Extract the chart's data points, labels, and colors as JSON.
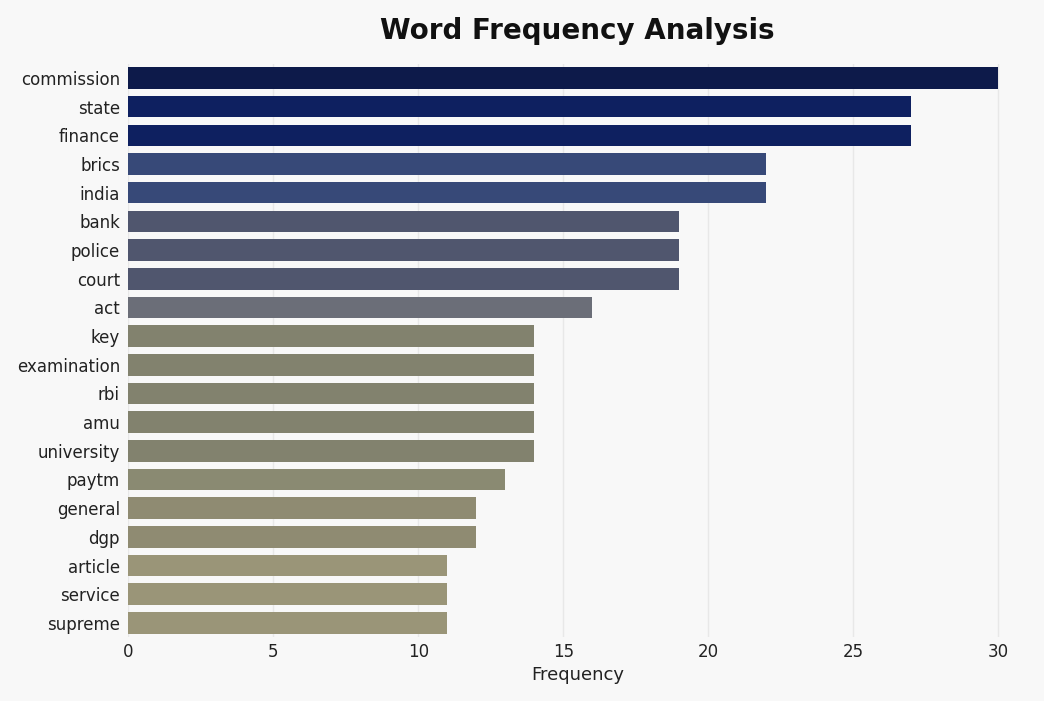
{
  "title": "Word Frequency Analysis",
  "xlabel": "Frequency",
  "categories": [
    "commission",
    "state",
    "finance",
    "brics",
    "india",
    "bank",
    "police",
    "court",
    "act",
    "key",
    "examination",
    "rbi",
    "amu",
    "university",
    "paytm",
    "general",
    "dgp",
    "article",
    "service",
    "supreme"
  ],
  "values": [
    30,
    27,
    27,
    22,
    22,
    19,
    19,
    19,
    16,
    14,
    14,
    14,
    14,
    14,
    13,
    12,
    12,
    11,
    11,
    11
  ],
  "bar_colors": [
    "#0d1a4a",
    "#0e2060",
    "#0e2060",
    "#374978",
    "#374978",
    "#50566e",
    "#50566e",
    "#50566e",
    "#6b6e78",
    "#82826e",
    "#82826e",
    "#82826e",
    "#82826e",
    "#82826e",
    "#8a8a72",
    "#8f8b72",
    "#8f8b72",
    "#9a9578",
    "#9a9578",
    "#9a9578"
  ],
  "xlim": [
    0,
    31
  ],
  "xticks": [
    0,
    5,
    10,
    15,
    20,
    25,
    30
  ],
  "background_color": "#f8f8f8",
  "plot_bg_color": "#f8f8f8",
  "title_fontsize": 20,
  "label_fontsize": 13,
  "tick_fontsize": 12,
  "bar_height": 0.75,
  "grid_color": "#e8e8e8"
}
